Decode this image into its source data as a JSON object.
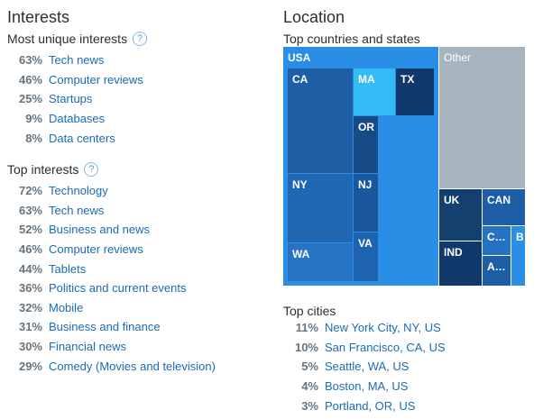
{
  "interests": {
    "title": "Interests",
    "unique": {
      "label": "Most unique interests",
      "help": "?",
      "items": [
        {
          "pct": "63%",
          "label": "Tech news"
        },
        {
          "pct": "46%",
          "label": "Computer reviews"
        },
        {
          "pct": "25%",
          "label": "Startups"
        },
        {
          "pct": "9%",
          "label": "Databases"
        },
        {
          "pct": "8%",
          "label": "Data centers"
        }
      ]
    },
    "top": {
      "label": "Top interests",
      "help": "?",
      "items": [
        {
          "pct": "72%",
          "label": "Technology"
        },
        {
          "pct": "63%",
          "label": "Tech news"
        },
        {
          "pct": "52%",
          "label": "Business and news"
        },
        {
          "pct": "46%",
          "label": "Computer reviews"
        },
        {
          "pct": "44%",
          "label": "Tablets"
        },
        {
          "pct": "36%",
          "label": "Politics and current events"
        },
        {
          "pct": "32%",
          "label": "Mobile"
        },
        {
          "pct": "31%",
          "label": "Business and finance"
        },
        {
          "pct": "30%",
          "label": "Financial news"
        },
        {
          "pct": "29%",
          "label": "Comedy (Movies and television)"
        }
      ]
    }
  },
  "location": {
    "title": "Location",
    "treemap_label": "Top countries and states",
    "tiles": {
      "usa": "USA",
      "ca": "CA",
      "ma": "MA",
      "tx": "TX",
      "or": "OR",
      "ny": "NY",
      "nj": "NJ",
      "va": "VA",
      "wa": "WA",
      "other": "Other",
      "uk": "UK",
      "can": "CAN",
      "c_trunc": "C…",
      "b": "B",
      "ind": "IND",
      "a_trunc": "A…"
    },
    "colors": {
      "usa": "#2b8ee6",
      "ca": "#1f5fa5",
      "ma": "#33bbf5",
      "tx": "#10386b",
      "or": "#174b86",
      "ny": "#1f67b3",
      "nj": "#1a579d",
      "va": "#1e63ad",
      "wa": "#2774c4",
      "other": "#a8b4bd",
      "uk": "#13406f",
      "can": "#1d5ea6",
      "c_trunc": "#2572c1",
      "b": "#2b8ee6",
      "ind": "#10386b",
      "a_trunc": "#1d5ea6"
    },
    "cities_label": "Top cities",
    "cities": [
      {
        "pct": "11%",
        "label": "New York City, NY, US"
      },
      {
        "pct": "10%",
        "label": "San Francisco, CA, US"
      },
      {
        "pct": "5%",
        "label": "Seattle, WA, US"
      },
      {
        "pct": "4%",
        "label": "Boston, MA, US"
      },
      {
        "pct": "3%",
        "label": "Portland, OR, US"
      }
    ]
  }
}
